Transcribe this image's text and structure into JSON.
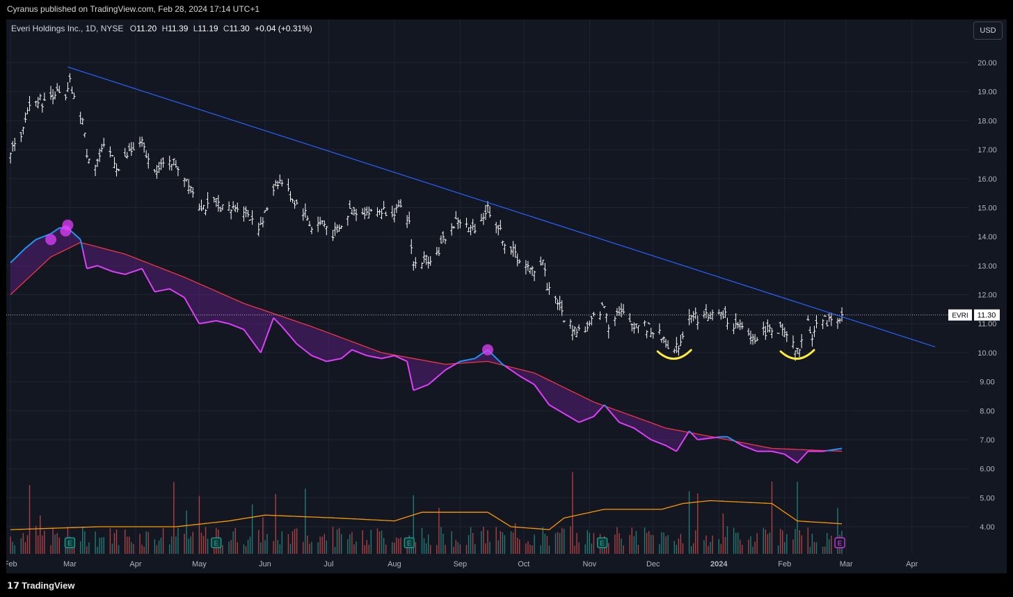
{
  "header": {
    "published": "Cyranus published on TradingView.com, Feb 28, 2024 17:14 UTC+1"
  },
  "legend": {
    "symbol": "Everi Holdings Inc., 1D, NYSE",
    "o_label": "O",
    "o": "11.20",
    "h_label": "H",
    "h": "11.39",
    "l_label": "L",
    "l": "11.19",
    "c_label": "C",
    "c": "11.30",
    "change": "+0.04 (+0.31%)"
  },
  "currency_button": "USD",
  "price_tag": {
    "ticker": "EVRI",
    "price": "11.30"
  },
  "brand": "TradingView",
  "colors": {
    "background": "#131722",
    "bars": "#ffffff",
    "trendline": "#2962ff",
    "indicator_fast_up": "#2196f3",
    "indicator_fast_down": "#e040fb",
    "indicator_slow": "#f23645",
    "volume_up": "#26a69a",
    "volume_down": "#ef5350",
    "volume_ma": "#ff9800",
    "annotation": "#ffeb3b"
  },
  "chart_data": {
    "type": "ohlc",
    "symbol": "EVRI",
    "interval": "1D",
    "y_axis": {
      "ticks": [
        "20.00",
        "19.00",
        "18.00",
        "17.00",
        "16.00",
        "15.00",
        "14.00",
        "13.00",
        "12.00",
        "11.00",
        "10.00",
        "9.00",
        "8.00",
        "7.00",
        "6.00",
        "5.00",
        "4.00"
      ],
      "ylim": [
        3.0,
        20.9
      ]
    },
    "x_axis": {
      "ticks": [
        "Feb",
        "Mar",
        "Apr",
        "May",
        "Jun",
        "Jul",
        "Aug",
        "Sep",
        "Oct",
        "Nov",
        "Dec",
        "2024",
        "Feb",
        "Mar",
        "Apr"
      ]
    },
    "price_anchors": [
      [
        "2023-02-01",
        17.0
      ],
      [
        "2023-02-06",
        17.3
      ],
      [
        "2023-02-09",
        18.4
      ],
      [
        "2023-02-13",
        18.8
      ],
      [
        "2023-02-17",
        18.6
      ],
      [
        "2023-02-22",
        19.0
      ],
      [
        "2023-02-27",
        18.7
      ],
      [
        "2023-03-01",
        19.3
      ],
      [
        "2023-03-03",
        18.7
      ],
      [
        "2023-03-07",
        18.0
      ],
      [
        "2023-03-09",
        16.9
      ],
      [
        "2023-03-13",
        16.5
      ],
      [
        "2023-03-17",
        17.0
      ],
      [
        "2023-03-21",
        16.8
      ],
      [
        "2023-03-24",
        16.3
      ],
      [
        "2023-03-29",
        16.9
      ],
      [
        "2023-04-04",
        17.2
      ],
      [
        "2023-04-07",
        16.6
      ],
      [
        "2023-04-12",
        16.3
      ],
      [
        "2023-04-17",
        16.7
      ],
      [
        "2023-04-21",
        16.4
      ],
      [
        "2023-04-26",
        15.9
      ],
      [
        "2023-05-01",
        15.1
      ],
      [
        "2023-05-05",
        15.0
      ],
      [
        "2023-05-09",
        15.2
      ],
      [
        "2023-05-12",
        15.0
      ],
      [
        "2023-05-16",
        14.9
      ],
      [
        "2023-05-19",
        15.1
      ],
      [
        "2023-05-24",
        14.8
      ],
      [
        "2023-05-30",
        14.3
      ],
      [
        "2023-06-02",
        15.0
      ],
      [
        "2023-06-06",
        15.9
      ],
      [
        "2023-06-09",
        15.9
      ],
      [
        "2023-06-14",
        15.3
      ],
      [
        "2023-06-20",
        14.8
      ],
      [
        "2023-06-23",
        14.3
      ],
      [
        "2023-06-28",
        14.5
      ],
      [
        "2023-07-03",
        14.1
      ],
      [
        "2023-07-07",
        14.3
      ],
      [
        "2023-07-11",
        14.9
      ],
      [
        "2023-07-17",
        14.9
      ],
      [
        "2023-07-21",
        14.8
      ],
      [
        "2023-07-26",
        14.9
      ],
      [
        "2023-07-31",
        14.9
      ],
      [
        "2023-08-04",
        14.9
      ],
      [
        "2023-08-08",
        14.5
      ],
      [
        "2023-08-10",
        13.0
      ],
      [
        "2023-08-15",
        13.2
      ],
      [
        "2023-08-21",
        13.4
      ],
      [
        "2023-08-25",
        14.0
      ],
      [
        "2023-08-31",
        14.6
      ],
      [
        "2023-09-06",
        14.2
      ],
      [
        "2023-09-11",
        14.6
      ],
      [
        "2023-09-14",
        15.0
      ],
      [
        "2023-09-19",
        14.3
      ],
      [
        "2023-09-22",
        13.8
      ],
      [
        "2023-09-28",
        13.3
      ],
      [
        "2023-10-04",
        12.8
      ],
      [
        "2023-10-06",
        12.9
      ],
      [
        "2023-10-10",
        13.2
      ],
      [
        "2023-10-12",
        12.3
      ],
      [
        "2023-10-17",
        11.8
      ],
      [
        "2023-10-20",
        11.2
      ],
      [
        "2023-10-25",
        10.8
      ],
      [
        "2023-10-31",
        10.8
      ],
      [
        "2023-11-03",
        11.2
      ],
      [
        "2023-11-08",
        11.6
      ],
      [
        "2023-11-10",
        11.0
      ],
      [
        "2023-11-15",
        11.5
      ],
      [
        "2023-11-20",
        11.0
      ],
      [
        "2023-11-24",
        11.0
      ],
      [
        "2023-11-30",
        10.8
      ],
      [
        "2023-12-06",
        10.5
      ],
      [
        "2023-12-11",
        10.0
      ],
      [
        "2023-12-14",
        10.4
      ],
      [
        "2023-12-18",
        11.4
      ],
      [
        "2023-12-22",
        11.2
      ],
      [
        "2023-12-28",
        11.3
      ],
      [
        "2024-01-03",
        11.3
      ],
      [
        "2024-01-09",
        10.9
      ],
      [
        "2024-01-12",
        10.8
      ],
      [
        "2024-01-17",
        10.5
      ],
      [
        "2024-01-22",
        10.7
      ],
      [
        "2024-01-26",
        10.9
      ],
      [
        "2024-01-31",
        10.7
      ],
      [
        "2024-02-05",
        10.2
      ],
      [
        "2024-02-07",
        10.0
      ],
      [
        "2024-02-09",
        10.4
      ],
      [
        "2024-02-12",
        11.0
      ],
      [
        "2024-02-14",
        10.6
      ],
      [
        "2024-02-16",
        11.0
      ],
      [
        "2024-02-21",
        11.1
      ],
      [
        "2024-02-26",
        11.2
      ],
      [
        "2024-02-28",
        11.3
      ]
    ],
    "trendline": {
      "from": [
        "2023-02-28",
        19.85
      ],
      "to": [
        "2024-04-12",
        10.2
      ],
      "color": "#2962ff"
    },
    "last_price_line": 11.3,
    "annotations": [
      {
        "type": "arc",
        "date": "2023-12-11",
        "price": 9.9,
        "color": "#ffeb3b"
      },
      {
        "type": "arc",
        "date": "2024-02-07",
        "price": 9.9,
        "color": "#ffeb3b"
      }
    ],
    "indicator_fast": [
      [
        "2023-02-01",
        13.1
      ],
      [
        "2023-02-08",
        13.6
      ],
      [
        "2023-02-13",
        13.9
      ],
      [
        "2023-02-20",
        14.1
      ],
      [
        "2023-02-24",
        14.3
      ],
      [
        "2023-02-28",
        14.3
      ],
      [
        "2023-03-06",
        13.9
      ],
      [
        "2023-03-09",
        12.9
      ],
      [
        "2023-03-14",
        13.0
      ],
      [
        "2023-03-21",
        12.8
      ],
      [
        "2023-03-27",
        12.7
      ],
      [
        "2023-04-04",
        12.9
      ],
      [
        "2023-04-10",
        12.1
      ],
      [
        "2023-04-17",
        12.2
      ],
      [
        "2023-04-24",
        11.9
      ],
      [
        "2023-05-01",
        11.0
      ],
      [
        "2023-05-09",
        11.1
      ],
      [
        "2023-05-15",
        11.0
      ],
      [
        "2023-05-22",
        10.8
      ],
      [
        "2023-05-30",
        10.0
      ],
      [
        "2023-06-05",
        11.2
      ],
      [
        "2023-06-09",
        10.9
      ],
      [
        "2023-06-16",
        10.3
      ],
      [
        "2023-06-23",
        9.9
      ],
      [
        "2023-06-30",
        9.7
      ],
      [
        "2023-07-07",
        9.8
      ],
      [
        "2023-07-12",
        10.1
      ],
      [
        "2023-07-19",
        9.9
      ],
      [
        "2023-07-26",
        9.8
      ],
      [
        "2023-08-01",
        9.9
      ],
      [
        "2023-08-07",
        9.7
      ],
      [
        "2023-08-10",
        8.7
      ],
      [
        "2023-08-17",
        8.9
      ],
      [
        "2023-08-25",
        9.4
      ],
      [
        "2023-09-01",
        9.7
      ],
      [
        "2023-09-08",
        9.8
      ],
      [
        "2023-09-14",
        10.1
      ],
      [
        "2023-09-21",
        9.6
      ],
      [
        "2023-09-29",
        9.2
      ],
      [
        "2023-10-06",
        8.9
      ],
      [
        "2023-10-13",
        8.2
      ],
      [
        "2023-10-20",
        7.9
      ],
      [
        "2023-10-27",
        7.6
      ],
      [
        "2023-11-03",
        7.8
      ],
      [
        "2023-11-08",
        8.2
      ],
      [
        "2023-11-15",
        7.6
      ],
      [
        "2023-11-22",
        7.4
      ],
      [
        "2023-11-30",
        7.0
      ],
      [
        "2023-12-07",
        6.8
      ],
      [
        "2023-12-12",
        6.6
      ],
      [
        "2023-12-18",
        7.3
      ],
      [
        "2023-12-22",
        7.0
      ],
      [
        "2024-01-02",
        7.1
      ],
      [
        "2024-01-05",
        7.1
      ],
      [
        "2024-01-12",
        6.8
      ],
      [
        "2024-01-19",
        6.6
      ],
      [
        "2024-01-26",
        6.6
      ],
      [
        "2024-02-01",
        6.5
      ],
      [
        "2024-02-07",
        6.2
      ],
      [
        "2024-02-12",
        6.6
      ],
      [
        "2024-02-19",
        6.6
      ],
      [
        "2024-02-28",
        6.7
      ]
    ],
    "indicator_slow": [
      [
        "2023-02-01",
        12.0
      ],
      [
        "2023-02-20",
        13.3
      ],
      [
        "2023-03-06",
        13.8
      ],
      [
        "2023-03-27",
        13.4
      ],
      [
        "2023-04-24",
        12.6
      ],
      [
        "2023-05-22",
        11.7
      ],
      [
        "2023-06-23",
        10.9
      ],
      [
        "2023-07-26",
        10.0
      ],
      [
        "2023-08-25",
        9.6
      ],
      [
        "2023-09-14",
        9.7
      ],
      [
        "2023-10-06",
        9.3
      ],
      [
        "2023-11-03",
        8.3
      ],
      [
        "2023-12-07",
        7.4
      ],
      [
        "2024-01-05",
        7.0
      ],
      [
        "2024-01-26",
        6.7
      ],
      [
        "2024-02-28",
        6.6
      ]
    ],
    "signal_markers": [
      {
        "date": "2023-02-20",
        "value": 13.9
      },
      {
        "date": "2023-02-27",
        "value": 14.2
      },
      {
        "date": "2023-02-28",
        "value": 14.4
      },
      {
        "date": "2023-09-14",
        "value": 10.1
      }
    ],
    "earnings_markers": [
      "2023-03-01",
      "2023-05-09",
      "2023-08-08",
      "2023-11-07",
      "2024-02-27"
    ],
    "volume_ma": [
      [
        "2023-02-01",
        3.9
      ],
      [
        "2023-03-15",
        4.0
      ],
      [
        "2023-04-20",
        4.0
      ],
      [
        "2023-05-15",
        4.2
      ],
      [
        "2023-06-01",
        4.4
      ],
      [
        "2023-07-05",
        4.3
      ],
      [
        "2023-08-01",
        4.2
      ],
      [
        "2023-08-14",
        4.5
      ],
      [
        "2023-09-14",
        4.5
      ],
      [
        "2023-09-25",
        4.0
      ],
      [
        "2023-10-13",
        3.9
      ],
      [
        "2023-10-20",
        4.3
      ],
      [
        "2023-11-08",
        4.6
      ],
      [
        "2023-12-05",
        4.6
      ],
      [
        "2023-12-15",
        4.8
      ],
      [
        "2023-12-28",
        4.9
      ],
      [
        "2024-01-26",
        4.8
      ],
      [
        "2024-02-07",
        4.2
      ],
      [
        "2024-02-28",
        4.1
      ]
    ]
  }
}
